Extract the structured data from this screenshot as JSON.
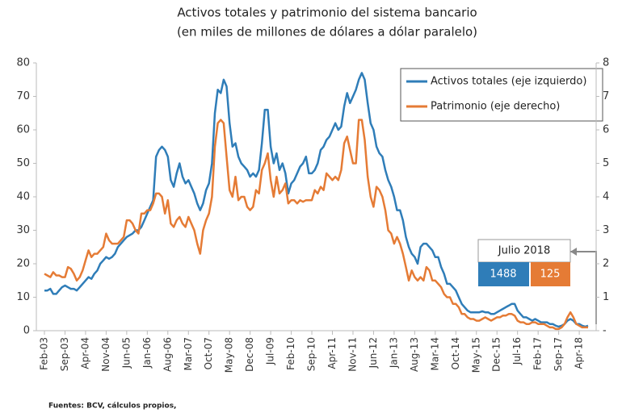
{
  "chart_data": {
    "type": "line",
    "title": "Activos totales y patrimonio del sistema bancario",
    "subtitle": "(en miles de millones de dólares a dólar paralelo)",
    "source": "Fuentes: BCV, cálculos propios,",
    "categories": [
      "Feb-03",
      null,
      null,
      null,
      null,
      null,
      null,
      "Sep-03",
      null,
      null,
      null,
      null,
      null,
      null,
      "Apr-04",
      null,
      null,
      null,
      null,
      null,
      null,
      "Nov-04",
      null,
      null,
      null,
      null,
      null,
      null,
      "Jun-05",
      null,
      null,
      null,
      null,
      null,
      null,
      "Jan-06",
      null,
      null,
      null,
      null,
      null,
      null,
      "Aug-06",
      null,
      null,
      null,
      null,
      null,
      null,
      "Mar-07",
      null,
      null,
      null,
      null,
      null,
      null,
      "Oct-07",
      null,
      null,
      null,
      null,
      null,
      null,
      "May-08",
      null,
      null,
      null,
      null,
      null,
      null,
      "Dec-08",
      null,
      null,
      null,
      null,
      null,
      null,
      "Jul-09",
      null,
      null,
      null,
      null,
      null,
      null,
      "Feb-10",
      null,
      null,
      null,
      null,
      null,
      null,
      "Sep-10",
      null,
      null,
      null,
      null,
      null,
      null,
      "Apr-11",
      null,
      null,
      null,
      null,
      null,
      null,
      "Nov-11",
      null,
      null,
      null,
      null,
      null,
      null,
      "Jun-12",
      null,
      null,
      null,
      null,
      null,
      null,
      "Jan-13",
      null,
      null,
      null,
      null,
      null,
      null,
      "Aug-13",
      null,
      null,
      null,
      null,
      null,
      null,
      "Mar-14",
      null,
      null,
      null,
      null,
      null,
      null,
      "Oct-14",
      null,
      null,
      null,
      null,
      null,
      null,
      "May-15",
      null,
      null,
      null,
      null,
      null,
      null,
      "Dec-15",
      null,
      null,
      null,
      null,
      null,
      null,
      "Jul-16",
      null,
      null,
      null,
      null,
      null,
      null,
      "Feb-17",
      null,
      null,
      null,
      null,
      null,
      null,
      "Sep-17",
      null,
      null,
      null,
      null,
      null,
      null,
      "Apr-18",
      null,
      null,
      null
    ],
    "series": [
      {
        "name": "Activos totales (eje izquierdo)",
        "color": "#2f7db8",
        "axis": "y",
        "values": [
          12,
          12,
          12.5,
          11,
          11,
          12,
          13,
          13.5,
          13,
          12.5,
          12.5,
          12,
          13,
          14,
          15,
          16,
          15.5,
          17,
          18,
          20,
          21,
          22,
          21.5,
          22,
          23,
          25,
          26,
          27,
          28,
          28.5,
          29,
          30,
          30,
          31,
          33,
          35,
          37,
          39,
          52,
          54,
          55,
          54,
          52,
          45,
          43,
          47,
          50,
          46,
          44,
          45,
          43,
          41,
          38,
          36,
          38,
          42,
          44,
          50,
          65,
          72,
          71,
          75,
          73,
          62,
          55,
          56,
          52,
          50,
          49,
          48,
          46,
          47,
          46,
          48,
          56,
          66,
          66,
          55,
          50,
          53,
          48,
          50,
          47,
          41,
          44,
          45,
          47,
          49,
          50,
          52,
          47,
          47,
          48,
          50,
          54,
          55,
          57,
          58,
          60,
          62,
          60,
          61,
          67,
          71,
          68,
          70,
          72,
          75,
          77,
          75,
          68,
          62,
          60,
          55,
          53,
          52,
          48,
          45,
          43,
          40,
          36,
          36,
          33,
          28,
          25,
          23,
          22,
          20,
          25,
          26,
          26,
          25,
          24,
          22,
          22,
          19,
          17,
          14,
          14,
          13,
          12,
          10,
          8,
          7,
          6,
          5.5,
          5.5,
          5.5,
          5.5,
          5.8,
          5.5,
          5.5,
          5,
          5,
          5.5,
          6,
          6.5,
          7,
          7.5,
          8,
          8,
          6,
          5,
          4,
          4,
          3.5,
          3,
          3.5,
          3,
          2.5,
          2.5,
          2.5,
          2,
          2,
          1.5,
          1.2,
          1.5,
          2,
          3,
          3.5,
          3,
          2,
          2,
          1.5,
          1.2,
          1.5
        ]
      },
      {
        "name": "Patrimonio (eje derecho)",
        "color": "#e57b35",
        "axis": "y2",
        "values": [
          1.7,
          1.65,
          1.6,
          1.75,
          1.65,
          1.65,
          1.6,
          1.6,
          1.9,
          1.85,
          1.7,
          1.5,
          1.6,
          1.8,
          2.1,
          2.4,
          2.2,
          2.3,
          2.3,
          2.4,
          2.5,
          2.9,
          2.7,
          2.6,
          2.6,
          2.6,
          2.7,
          2.8,
          3.3,
          3.3,
          3.2,
          3.0,
          2.9,
          3.5,
          3.5,
          3.6,
          3.6,
          3.8,
          4.1,
          4.1,
          4.0,
          3.5,
          3.9,
          3.2,
          3.1,
          3.3,
          3.4,
          3.2,
          3.1,
          3.4,
          3.2,
          3.0,
          2.6,
          2.3,
          3.0,
          3.3,
          3.5,
          4.0,
          5.5,
          6.2,
          6.3,
          6.2,
          5.2,
          4.2,
          4.0,
          4.6,
          3.9,
          4.0,
          4.0,
          3.7,
          3.6,
          3.7,
          4.2,
          4.1,
          4.8,
          5.0,
          5.3,
          4.5,
          4.0,
          4.6,
          4.1,
          4.2,
          4.4,
          3.8,
          3.9,
          3.9,
          3.8,
          3.9,
          3.85,
          3.9,
          3.9,
          3.9,
          4.2,
          4.1,
          4.3,
          4.2,
          4.7,
          4.6,
          4.5,
          4.6,
          4.5,
          4.8,
          5.6,
          5.8,
          5.4,
          5.0,
          5.0,
          6.3,
          6.3,
          5.7,
          4.6,
          4.0,
          3.7,
          4.3,
          4.2,
          4.0,
          3.6,
          3.0,
          2.9,
          2.6,
          2.8,
          2.6,
          2.3,
          1.9,
          1.5,
          1.8,
          1.6,
          1.5,
          1.6,
          1.5,
          1.9,
          1.8,
          1.5,
          1.5,
          1.4,
          1.3,
          1.1,
          1.0,
          1.0,
          0.8,
          0.8,
          0.7,
          0.5,
          0.5,
          0.4,
          0.35,
          0.35,
          0.3,
          0.3,
          0.35,
          0.4,
          0.35,
          0.3,
          0.35,
          0.4,
          0.4,
          0.45,
          0.45,
          0.5,
          0.5,
          0.45,
          0.3,
          0.25,
          0.25,
          0.2,
          0.2,
          0.25,
          0.25,
          0.2,
          0.2,
          0.2,
          0.15,
          0.1,
          0.1,
          0.05,
          0.05,
          0.1,
          0.2,
          0.4,
          0.55,
          0.4,
          0.2,
          0.15,
          0.1,
          0.1,
          0.1
        ]
      }
    ],
    "ylim": [
      0,
      80
    ],
    "yticks": [
      0,
      10,
      20,
      30,
      40,
      50,
      60,
      70,
      80
    ],
    "y2lim": [
      0,
      8
    ],
    "y2ticks": [
      {
        "value": 0,
        "label": "-"
      },
      1,
      2,
      3,
      4,
      5,
      6,
      7,
      8
    ],
    "legend": "upper right",
    "callout": {
      "title": "Julio 2018",
      "values": [
        1488,
        125
      ]
    }
  }
}
